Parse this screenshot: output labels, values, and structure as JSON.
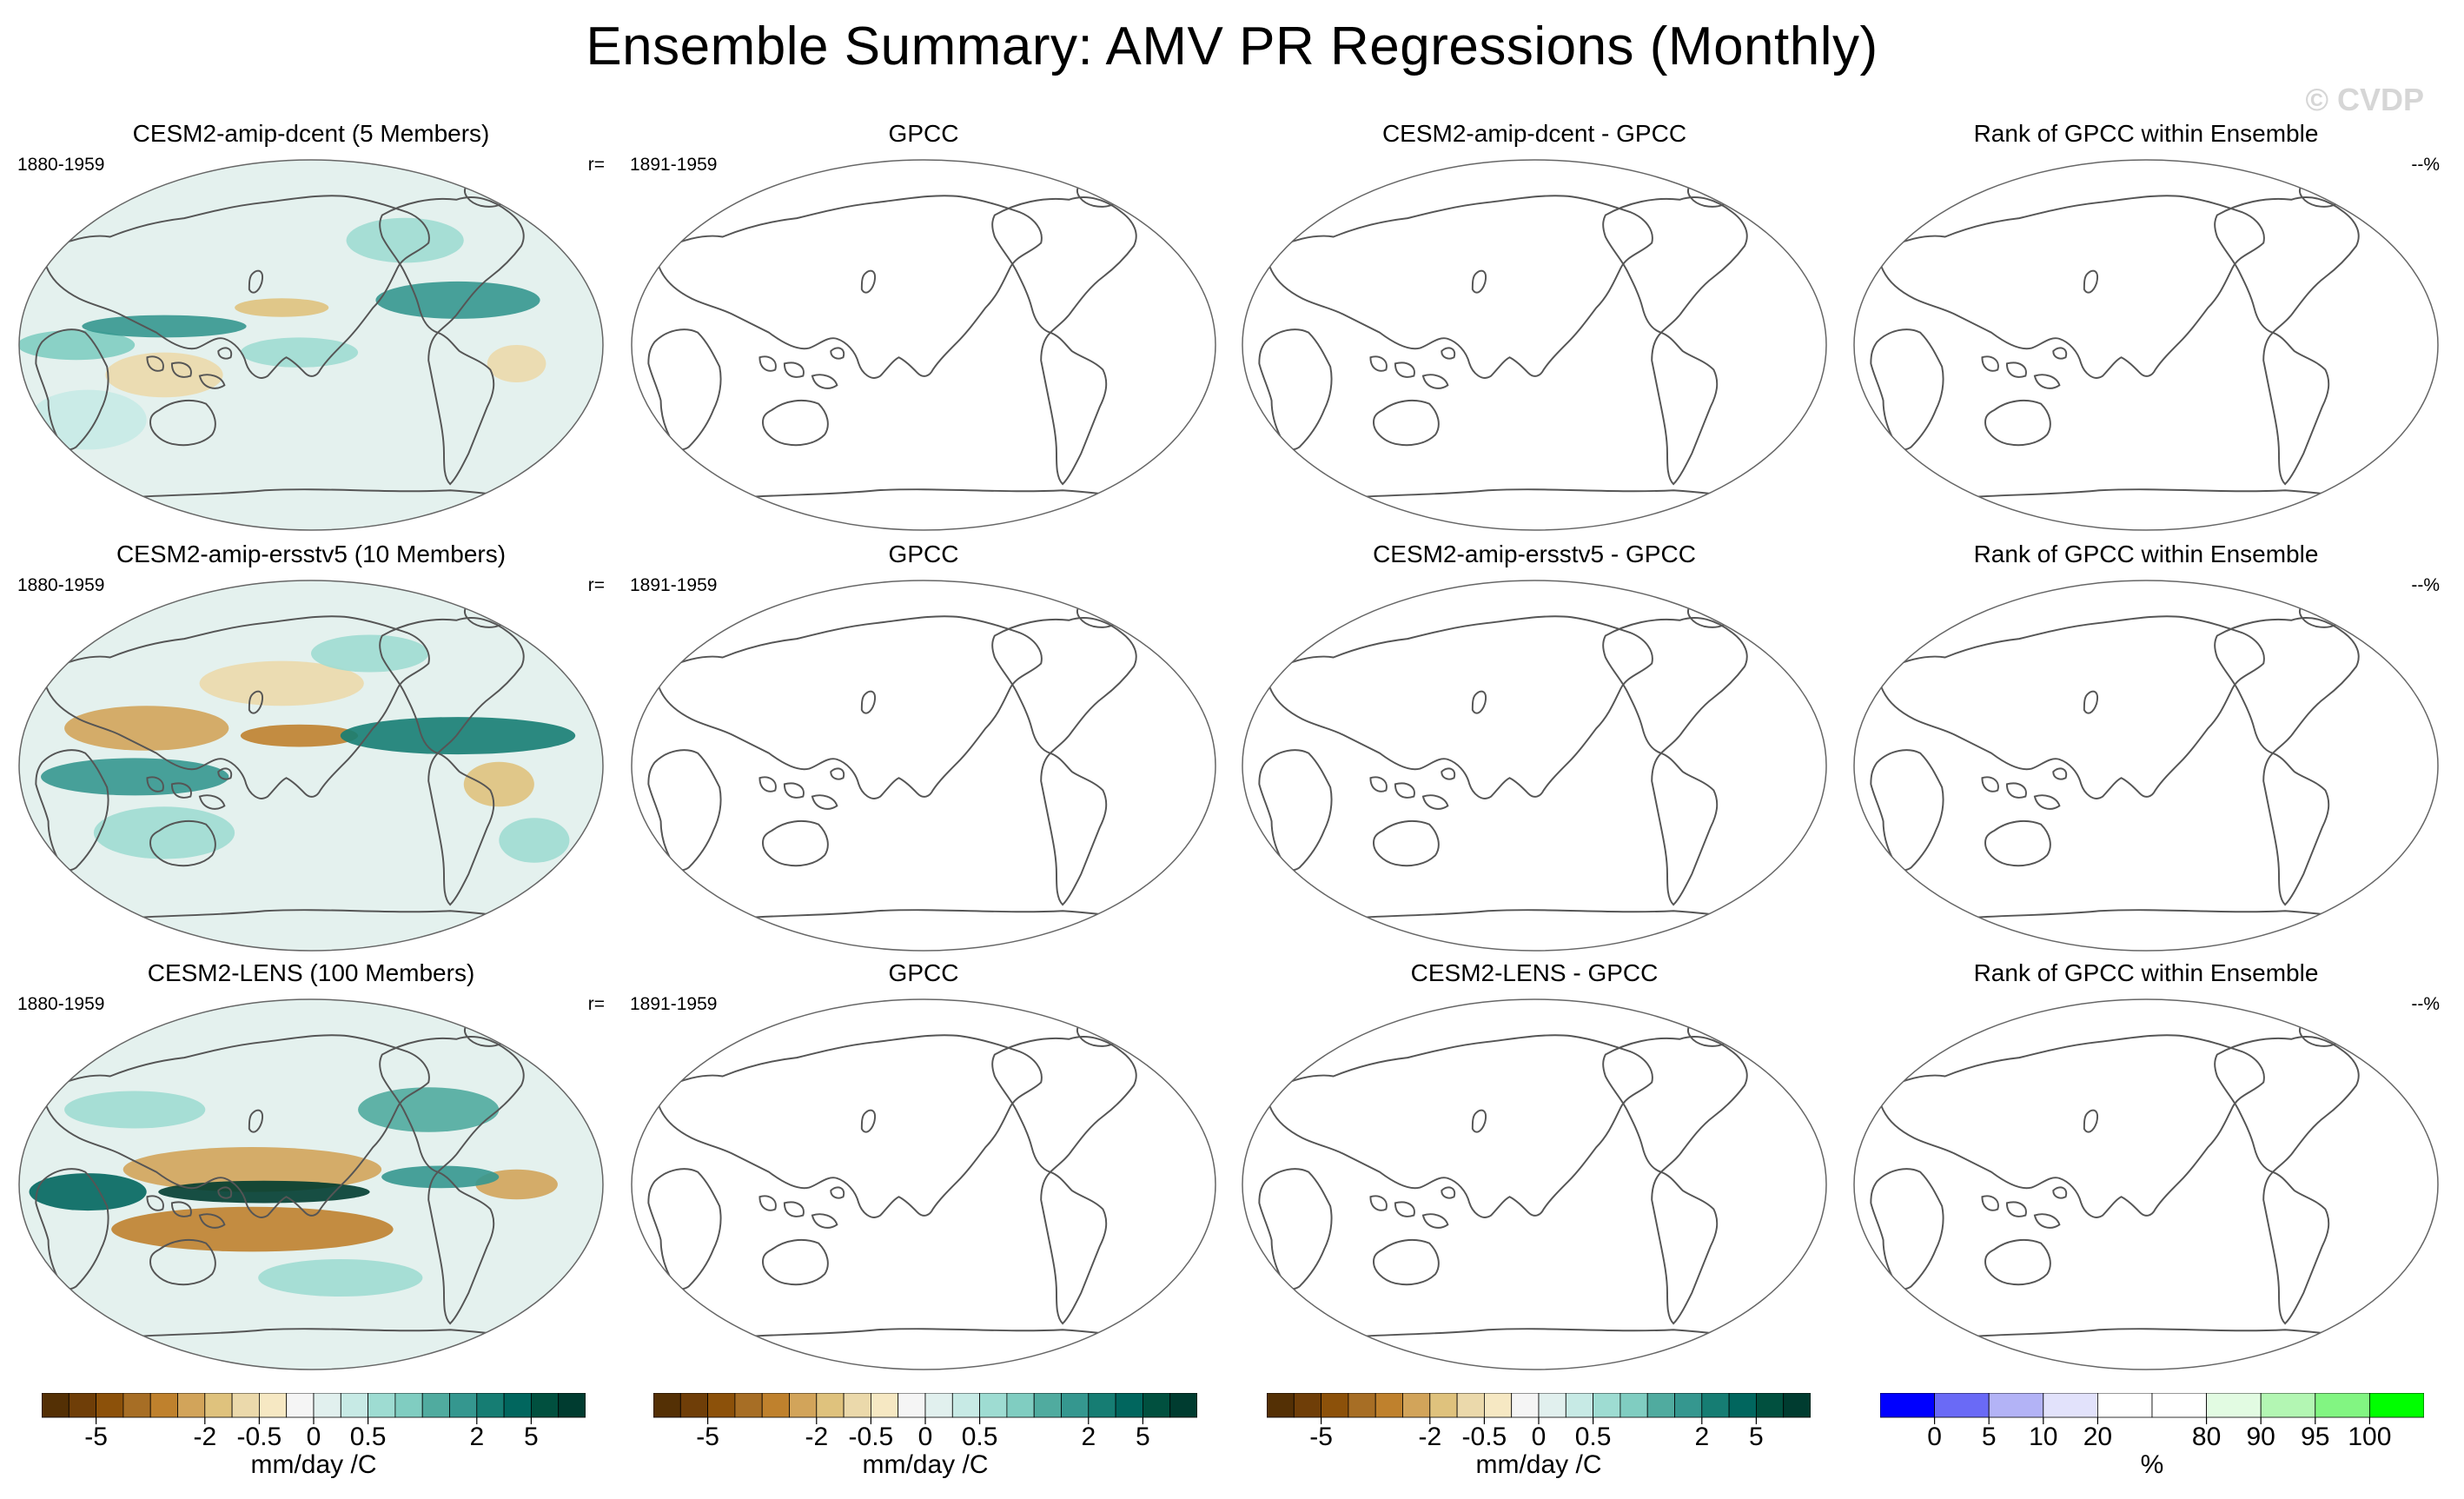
{
  "title": "Ensemble Summary: AMV PR Regressions (Monthly)",
  "watermark": "© CVDP",
  "colors": {
    "brown_dark": "#4a2a05",
    "teal_dark": "#013c30",
    "ocean_neutral": "#f3f0e8",
    "land_line": "#555555"
  },
  "rows": [
    {
      "model": {
        "title": "CESM2-amip-dcent (5 Members)",
        "years": "1880-1959",
        "corr": "r="
      },
      "obs": {
        "title": "GPCC",
        "years": "1891-1959"
      },
      "diff": {
        "title": "CESM2-amip-dcent - GPCC"
      },
      "rank": {
        "title": "Rank of GPCC within Ensemble",
        "pct": "--%"
      }
    },
    {
      "model": {
        "title": "CESM2-amip-ersstv5 (10 Members)",
        "years": "1880-1959",
        "corr": "r="
      },
      "obs": {
        "title": "GPCC",
        "years": "1891-1959"
      },
      "diff": {
        "title": "CESM2-amip-ersstv5 - GPCC"
      },
      "rank": {
        "title": "Rank of GPCC within Ensemble",
        "pct": "--%"
      }
    },
    {
      "model": {
        "title": "CESM2-LENS (100 Members)",
        "years": "1880-1959",
        "corr": "r="
      },
      "obs": {
        "title": "GPCC",
        "years": "1891-1959"
      },
      "diff": {
        "title": "CESM2-LENS - GPCC"
      },
      "rank": {
        "title": "Rank of GPCC within Ensemble",
        "pct": "--%"
      }
    }
  ],
  "colorbars": {
    "brbg": {
      "colors": [
        "#543005",
        "#6f3e08",
        "#8c510a",
        "#a76e25",
        "#bf812d",
        "#d2a45a",
        "#dfc27d",
        "#ebd9ab",
        "#f6e8c3",
        "#f5f5f5",
        "#e1f0ee",
        "#c7eae5",
        "#9edcd2",
        "#80cdc1",
        "#50ab9f",
        "#35978f",
        "#167d73",
        "#01665e",
        "#01503f",
        "#003c30"
      ],
      "ticks": [
        "-5",
        "-2",
        "-0.5",
        "0",
        "0.5",
        "2",
        "5"
      ],
      "units": "mm/day /C"
    },
    "rank": {
      "colors": [
        "#0000ff",
        "#6a6af6",
        "#b3b3f6",
        "#e2e2fb",
        "#ffffff",
        "#ffffff",
        "#e2fbe2",
        "#b3f6b3",
        "#82f582",
        "#00ff00"
      ],
      "ticks": [
        "0",
        "5",
        "10",
        "20",
        "80",
        "90",
        "95",
        "100"
      ],
      "units": "%"
    }
  }
}
